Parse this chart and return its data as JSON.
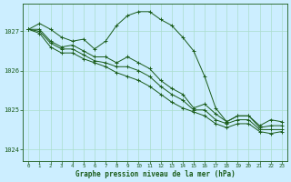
{
  "background_color": "#cceeff",
  "grid_color": "#aaddcc",
  "line_color": "#1a5c1a",
  "xlabel": "Graphe pression niveau de la mer (hPa)",
  "xlabel_color": "#1a5c1a",
  "tick_color": "#1a5c1a",
  "ylim": [
    1023.7,
    1027.7
  ],
  "xlim": [
    -0.5,
    23.5
  ],
  "yticks": [
    1024,
    1025,
    1026,
    1027
  ],
  "xticks": [
    0,
    1,
    2,
    3,
    4,
    5,
    6,
    7,
    8,
    9,
    10,
    11,
    12,
    13,
    14,
    15,
    16,
    17,
    18,
    19,
    20,
    21,
    22,
    23
  ],
  "series": [
    [
      1027.05,
      1027.2,
      1027.05,
      1026.85,
      1026.75,
      1026.8,
      1026.55,
      1026.75,
      1027.15,
      1027.4,
      1027.5,
      1027.5,
      1027.3,
      1027.15,
      1026.85,
      1026.5,
      1025.85,
      1025.05,
      1024.7,
      1024.85,
      1024.85,
      1024.6,
      1024.75,
      1024.7
    ],
    [
      1027.05,
      1027.05,
      1026.75,
      1026.6,
      1026.65,
      1026.5,
      1026.35,
      1026.35,
      1026.2,
      1026.35,
      1026.2,
      1026.05,
      1025.75,
      1025.55,
      1025.4,
      1025.05,
      1025.15,
      1024.9,
      1024.7,
      1024.85,
      1024.85,
      1024.55,
      1024.6,
      1024.6
    ],
    [
      1027.05,
      1027.0,
      1026.7,
      1026.55,
      1026.55,
      1026.4,
      1026.25,
      1026.2,
      1026.1,
      1026.1,
      1026.0,
      1025.85,
      1025.6,
      1025.4,
      1025.25,
      1025.0,
      1025.0,
      1024.75,
      1024.65,
      1024.75,
      1024.75,
      1024.5,
      1024.5,
      1024.5
    ],
    [
      1027.05,
      1026.95,
      1026.6,
      1026.45,
      1026.45,
      1026.3,
      1026.2,
      1026.1,
      1025.95,
      1025.85,
      1025.75,
      1025.6,
      1025.4,
      1025.2,
      1025.05,
      1024.95,
      1024.85,
      1024.65,
      1024.55,
      1024.65,
      1024.65,
      1024.45,
      1024.4,
      1024.45
    ]
  ]
}
